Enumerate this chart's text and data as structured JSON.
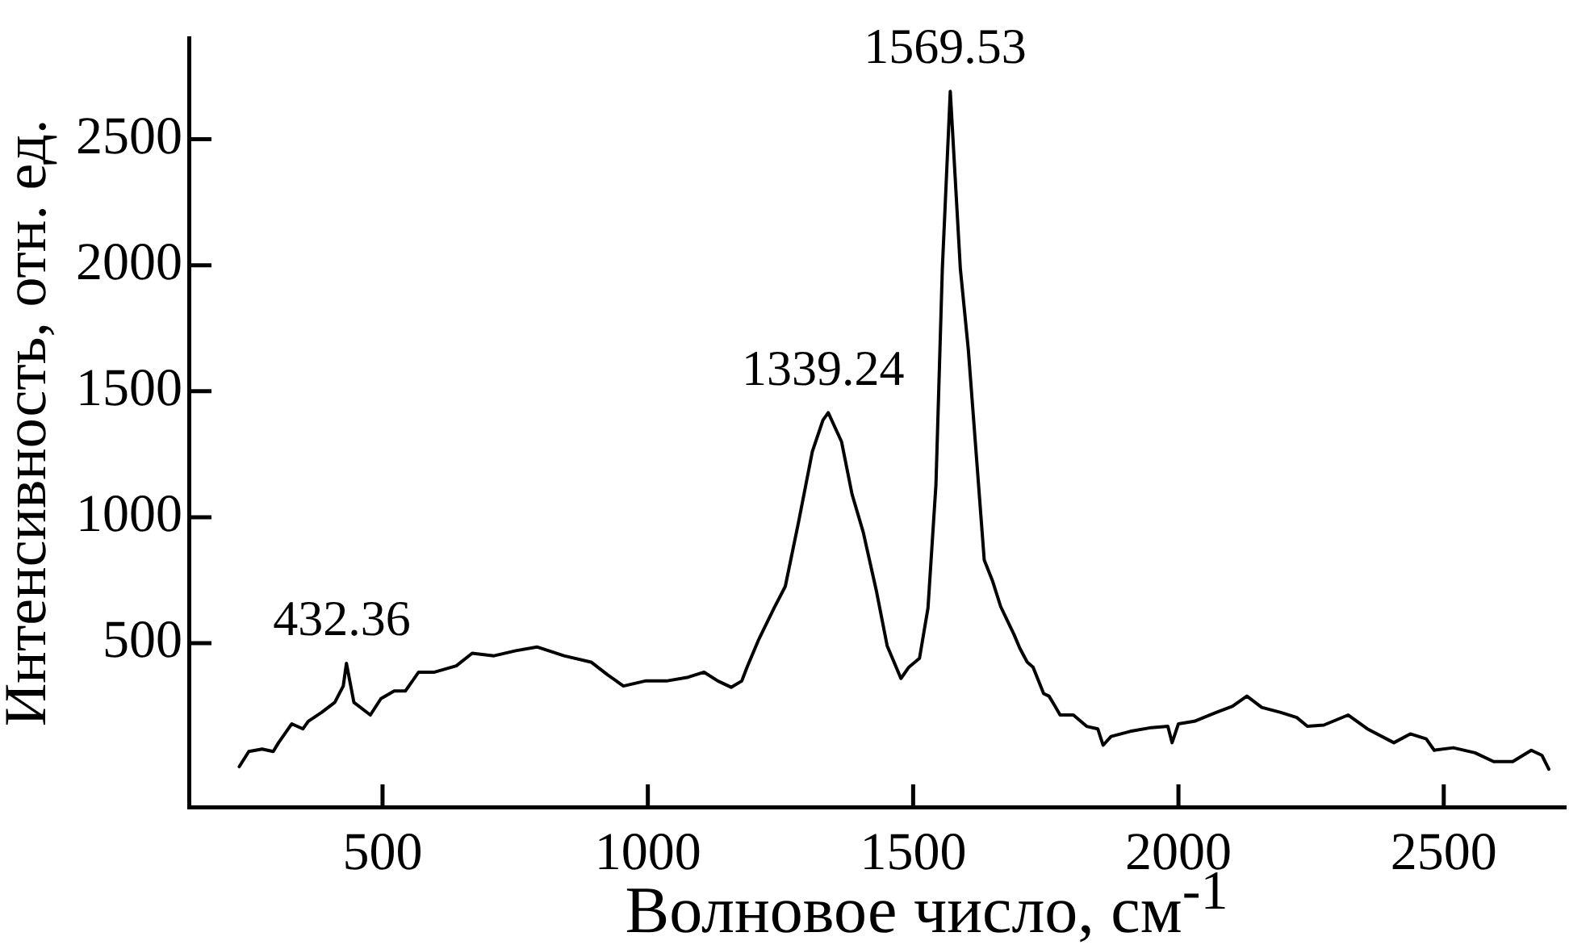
{
  "chart_data": {
    "type": "line",
    "xlabel": "Волновое число, см$^{-1}$",
    "ylabel": "Интенсивность, отн. ед.",
    "color": "#000000",
    "x": [
      230,
      248,
      273,
      294,
      304,
      329,
      350,
      360,
      385,
      410,
      426,
      432,
      446,
      477,
      497,
      522,
      543,
      568,
      598,
      639,
      669,
      710,
      751,
      791,
      842,
      893,
      924,
      954,
      995,
      1035,
      1076,
      1106,
      1132,
      1157,
      1177,
      1187,
      1208,
      1238,
      1259,
      1284,
      1310,
      1330,
      1340,
      1365,
      1385,
      1406,
      1431,
      1451,
      1477,
      1492,
      1512,
      1528,
      1543,
      1555,
      1570,
      1589,
      1604,
      1634,
      1650,
      1665,
      1690,
      1701,
      1715,
      1726,
      1746,
      1756,
      1766,
      1777,
      1802,
      1827,
      1848,
      1858,
      1873,
      1909,
      1949,
      1980,
      1988,
      2000,
      2030,
      2071,
      2102,
      2129,
      2157,
      2193,
      2223,
      2243,
      2274,
      2320,
      2356,
      2406,
      2437,
      2467,
      2482,
      2518,
      2559,
      2594,
      2630,
      2665,
      2685,
      2698
    ],
    "values": [
      10,
      70,
      80,
      70,
      105,
      180,
      160,
      190,
      225,
      265,
      330,
      420,
      265,
      215,
      280,
      310,
      310,
      385,
      385,
      410,
      460,
      450,
      470,
      485,
      450,
      425,
      375,
      330,
      350,
      350,
      365,
      385,
      350,
      325,
      350,
      405,
      510,
      640,
      725,
      980,
      1260,
      1385,
      1415,
      1300,
      1090,
      940,
      705,
      490,
      360,
      405,
      440,
      640,
      1130,
      1985,
      2690,
      1985,
      1665,
      830,
      745,
      645,
      535,
      480,
      425,
      405,
      300,
      290,
      255,
      215,
      215,
      170,
      160,
      95,
      130,
      150,
      165,
      170,
      105,
      180,
      190,
      225,
      250,
      290,
      245,
      225,
      205,
      170,
      175,
      215,
      160,
      105,
      140,
      120,
      75,
      85,
      65,
      30,
      30,
      75,
      55,
      0
    ],
    "xlim": [
      135,
      2730
    ],
    "ylim": [
      -150,
      2900
    ],
    "xticks": [
      500,
      1000,
      1500,
      2000,
      2500
    ],
    "yticks": [
      500,
      1000,
      1500,
      2000,
      2500
    ],
    "annotations": [
      {
        "text": "432.36",
        "x": 432.36,
        "y": 420
      },
      {
        "text": "1339.24",
        "x": 1339.24,
        "y": 1415
      },
      {
        "text": "1569.53",
        "x": 1569.53,
        "y": 2690
      }
    ]
  }
}
